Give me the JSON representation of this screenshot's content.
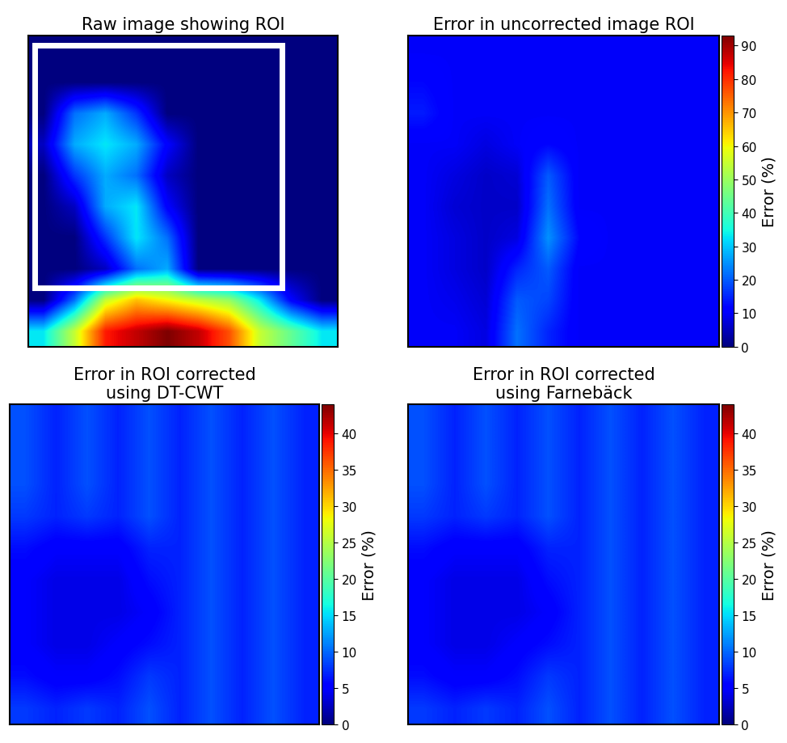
{
  "chart_data": [
    {
      "type": "image",
      "title": "Raw image showing ROI",
      "tick_labels": false,
      "cells": [
        [
          10,
          10,
          10,
          10,
          10,
          10,
          10,
          10,
          10,
          10
        ],
        [
          10,
          10,
          10,
          10,
          10,
          10,
          10,
          10,
          10,
          10
        ],
        [
          10,
          30,
          35,
          25,
          10,
          10,
          10,
          10,
          10,
          10
        ],
        [
          15,
          35,
          40,
          35,
          20,
          10,
          10,
          10,
          10,
          10
        ],
        [
          10,
          25,
          35,
          30,
          15,
          10,
          10,
          10,
          10,
          10
        ],
        [
          10,
          15,
          35,
          40,
          20,
          10,
          10,
          10,
          10,
          10
        ],
        [
          10,
          10,
          25,
          40,
          30,
          10,
          10,
          10,
          10,
          10
        ],
        [
          10,
          10,
          15,
          30,
          35,
          10,
          10,
          10,
          10,
          10
        ],
        [
          10,
          30,
          60,
          70,
          65,
          60,
          55,
          40,
          20,
          10
        ],
        [
          40,
          60,
          85,
          90,
          95,
          90,
          80,
          60,
          50,
          40
        ]
      ]
    },
    {
      "type": "heatmap",
      "title": "Error in uncorrected image ROI",
      "tick_labels": false,
      "colorbar_label": "Error (%)",
      "colorbar_range": [
        0,
        93
      ],
      "colorbar_ticks": [
        0,
        10,
        20,
        30,
        40,
        50,
        60,
        70,
        80,
        90
      ],
      "cells": [
        [
          10,
          10,
          10,
          10,
          10,
          10,
          10,
          10,
          10,
          10
        ],
        [
          12,
          10,
          10,
          10,
          10,
          10,
          10,
          10,
          10,
          10
        ],
        [
          14,
          10,
          10,
          10,
          10,
          10,
          10,
          10,
          10,
          10
        ],
        [
          10,
          10,
          8,
          10,
          12,
          10,
          10,
          10,
          10,
          10
        ],
        [
          10,
          8,
          6,
          7,
          20,
          10,
          10,
          10,
          10,
          10
        ],
        [
          10,
          7,
          6,
          6,
          22,
          10,
          10,
          10,
          10,
          10
        ],
        [
          10,
          8,
          6,
          8,
          25,
          12,
          10,
          10,
          10,
          10
        ],
        [
          10,
          8,
          6,
          15,
          20,
          10,
          10,
          10,
          10,
          10
        ],
        [
          10,
          9,
          7,
          20,
          18,
          10,
          10,
          10,
          10,
          10
        ],
        [
          10,
          10,
          8,
          22,
          15,
          10,
          10,
          10,
          10,
          10
        ]
      ]
    },
    {
      "type": "heatmap",
      "title": "Error in ROI corrected\nusing DT-CWT",
      "tick_labels": false,
      "colorbar_label": "Error (%)",
      "colorbar_range": [
        0,
        44
      ],
      "colorbar_ticks": [
        0,
        5,
        10,
        15,
        20,
        25,
        30,
        35,
        40
      ],
      "cells": [
        [
          9,
          7,
          9,
          7,
          9,
          7,
          9,
          7,
          9,
          7
        ],
        [
          9,
          7,
          9,
          7,
          9,
          7,
          9,
          7,
          9,
          7
        ],
        [
          9,
          7,
          9,
          7,
          9,
          7,
          9,
          7,
          9,
          7
        ],
        [
          8,
          7,
          8,
          7,
          9,
          7,
          9,
          7,
          9,
          7
        ],
        [
          6,
          5,
          5,
          5,
          7,
          7,
          9,
          7,
          9,
          7
        ],
        [
          5,
          4,
          4,
          4,
          6,
          7,
          9,
          7,
          9,
          7
        ],
        [
          5,
          4,
          4,
          4,
          5,
          7,
          9,
          7,
          9,
          7
        ],
        [
          5,
          4,
          4,
          5,
          6,
          7,
          9,
          7,
          9,
          7
        ],
        [
          6,
          5,
          5,
          6,
          8,
          7,
          9,
          7,
          9,
          7
        ],
        [
          8,
          7,
          8,
          7,
          9,
          7,
          9,
          7,
          9,
          7
        ]
      ]
    },
    {
      "type": "heatmap",
      "title": "Error in ROI corrected\nusing Farnebäck",
      "tick_labels": false,
      "colorbar_label": "Error (%)",
      "colorbar_range": [
        0,
        44
      ],
      "colorbar_ticks": [
        0,
        5,
        10,
        15,
        20,
        25,
        30,
        35,
        40
      ],
      "cells": [
        [
          9,
          7,
          9,
          7,
          9,
          7,
          9,
          7,
          9,
          7
        ],
        [
          9,
          7,
          9,
          7,
          9,
          7,
          9,
          7,
          9,
          7
        ],
        [
          9,
          7,
          9,
          7,
          9,
          7,
          9,
          7,
          9,
          7
        ],
        [
          8,
          7,
          8,
          7,
          9,
          7,
          9,
          7,
          9,
          7
        ],
        [
          6,
          5,
          5,
          5,
          7,
          7,
          9,
          7,
          9,
          7
        ],
        [
          5,
          4,
          4,
          4,
          6,
          7,
          9,
          7,
          9,
          7
        ],
        [
          5,
          4,
          4,
          4,
          5,
          7,
          9,
          7,
          9,
          7
        ],
        [
          5,
          4,
          4,
          5,
          6,
          7,
          9,
          7,
          9,
          7
        ],
        [
          6,
          5,
          5,
          6,
          8,
          7,
          9,
          7,
          9,
          7
        ],
        [
          8,
          7,
          8,
          7,
          9,
          7,
          9,
          7,
          9,
          7
        ]
      ]
    }
  ]
}
